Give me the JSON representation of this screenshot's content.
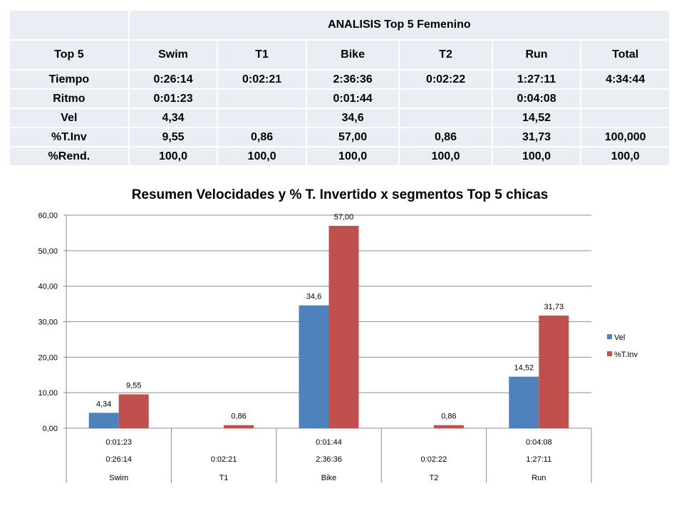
{
  "table": {
    "title": "ANALISIS Top 5 Femenino",
    "header": [
      "Top 5",
      "Swim",
      "T1",
      "Bike",
      "T2",
      "Run",
      "Total"
    ],
    "rows": [
      [
        "Tiempo",
        "0:26:14",
        "0:02:21",
        "2:36:36",
        "0:02:22",
        "1:27:11",
        "4:34:44"
      ],
      [
        "Ritmo",
        "0:01:23",
        "",
        "0:01:44",
        "",
        "0:04:08",
        ""
      ],
      [
        "Vel",
        "4,34",
        "",
        "34,6",
        "",
        "14,52",
        ""
      ],
      [
        "%T.Inv",
        "9,55",
        "0,86",
        "57,00",
        "0,86",
        "31,73",
        "100,000"
      ],
      [
        "%Rend.",
        "100,0",
        "100,0",
        "100,0",
        "100,0",
        "100,0",
        "100,0"
      ]
    ]
  },
  "colors": {
    "vel": "#4f81bd",
    "tinv": "#c0504d"
  },
  "chart_data": {
    "type": "bar",
    "title": "Resumen Velocidades y % T. Invertido x segmentos Top 5 chicas",
    "categories": [
      "Swim",
      "T1",
      "Bike",
      "T2",
      "Run"
    ],
    "category_level_times": [
      "0:26:14",
      "0:02:21",
      "2:36:36",
      "0:02:22",
      "1:27:11"
    ],
    "category_level_paces": [
      "0:01:23",
      "",
      "0:01:44",
      "",
      "0:04:08"
    ],
    "series": [
      {
        "name": "Vel",
        "values": [
          4.34,
          null,
          34.6,
          null,
          14.52
        ],
        "labels": [
          "4,34",
          "",
          "34,6",
          "",
          "14,52"
        ]
      },
      {
        "name": "%T.Inv",
        "values": [
          9.55,
          0.86,
          57.0,
          0.86,
          31.73
        ],
        "labels": [
          "9,55",
          "0,86",
          "57,00",
          "0,86",
          "31,73"
        ]
      }
    ],
    "ylim": [
      0,
      60
    ],
    "yticks": [
      "0,00",
      "10,00",
      "20,00",
      "30,00",
      "40,00",
      "50,00",
      "60,00"
    ],
    "legend_position": "right",
    "xlabel": "",
    "ylabel": "",
    "grid": true
  }
}
